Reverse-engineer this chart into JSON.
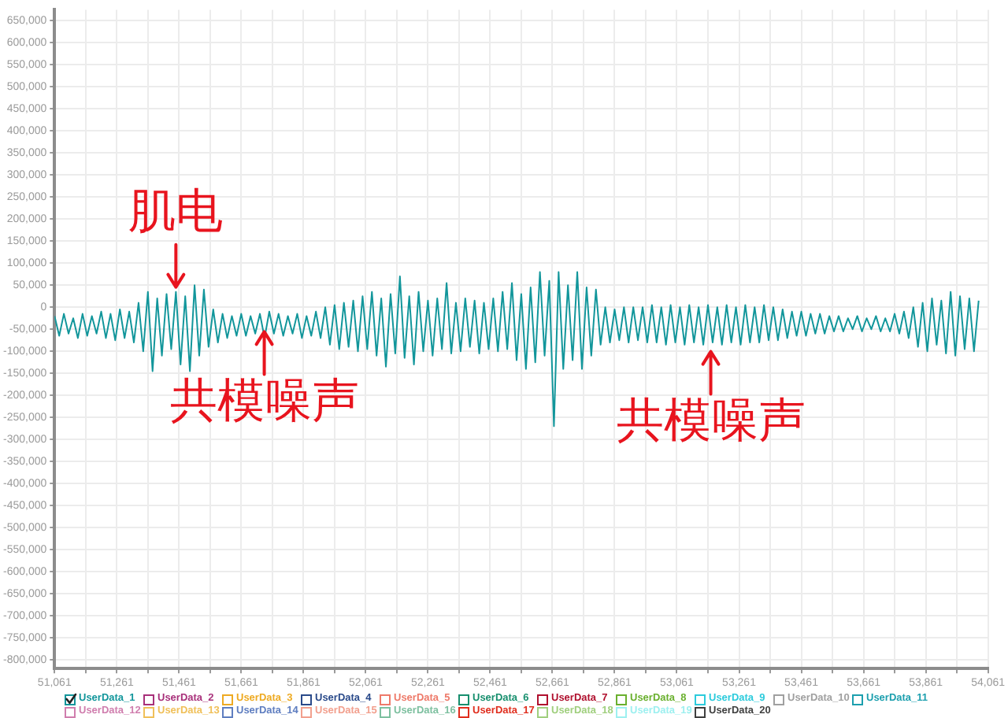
{
  "chart_data": {
    "type": "line",
    "series": [
      {
        "name": "UserData_1",
        "color": "#12969b",
        "x": [
          51061,
          51076,
          51091,
          51106,
          51121,
          51136,
          51151,
          51166,
          51181,
          51196,
          51211,
          51226,
          51241,
          51256,
          51271,
          51286,
          51301,
          51316,
          51331,
          51346,
          51361,
          51376,
          51391,
          51406,
          51421,
          51436,
          51451,
          51466,
          51481,
          51496,
          51511,
          51526,
          51541,
          51556,
          51571,
          51586,
          51601,
          51616,
          51631,
          51646,
          51661,
          51676,
          51691,
          51706,
          51721,
          51736,
          51751,
          51766,
          51781,
          51796,
          51811,
          51826,
          51841,
          51856,
          51871,
          51886,
          51901,
          51916,
          51931,
          51946,
          51961,
          51976,
          51991,
          52006,
          52021,
          52036,
          52051,
          52066,
          52081,
          52096,
          52111,
          52126,
          52141,
          52156,
          52171,
          52186,
          52201,
          52216,
          52231,
          52246,
          52261,
          52276,
          52291,
          52306,
          52321,
          52336,
          52351,
          52366,
          52381,
          52396,
          52411,
          52426,
          52441,
          52456,
          52471,
          52486,
          52501,
          52516,
          52531,
          52546,
          52561,
          52576,
          52591,
          52606,
          52621,
          52636,
          52651,
          52666,
          52681,
          52696,
          52711,
          52726,
          52741,
          52756,
          52771,
          52786,
          52801,
          52816,
          52831,
          52846,
          52861,
          52876,
          52891,
          52906,
          52921,
          52936,
          52951,
          52966,
          52981,
          52996,
          53011,
          53026,
          53041,
          53056,
          53071,
          53086,
          53101,
          53116,
          53131,
          53146,
          53161,
          53176,
          53191,
          53206,
          53221,
          53236,
          53251,
          53266,
          53281,
          53296,
          53311,
          53326,
          53341,
          53356,
          53371,
          53386,
          53401,
          53416,
          53431,
          53446,
          53461,
          53476,
          53491,
          53506,
          53521,
          53536,
          53551,
          53566,
          53581,
          53596,
          53611,
          53626,
          53641,
          53656,
          53671,
          53686,
          53701,
          53716,
          53731,
          53746,
          53761,
          53776,
          53791,
          53806,
          53821,
          53836,
          53851,
          53866,
          53881,
          53896,
          53911,
          53926,
          53941,
          53956,
          53971,
          53986,
          54001,
          54016,
          54031
        ],
        "values": [
          -20000,
          -65000,
          -15000,
          -60000,
          -25000,
          -70000,
          -15000,
          -65000,
          -20000,
          -60000,
          -10000,
          -70000,
          -15000,
          -75000,
          -5000,
          -70000,
          -10000,
          -80000,
          10000,
          -100000,
          35000,
          -145000,
          20000,
          -110000,
          30000,
          -95000,
          35000,
          -130000,
          25000,
          -145000,
          50000,
          -110000,
          40000,
          -90000,
          -5000,
          -80000,
          -15000,
          -70000,
          -20000,
          -65000,
          -15000,
          -65000,
          -20000,
          -60000,
          -15000,
          -70000,
          -10000,
          -60000,
          -15000,
          -65000,
          -20000,
          -60000,
          -15000,
          -70000,
          -20000,
          -65000,
          -10000,
          -70000,
          0,
          -85000,
          5000,
          -95000,
          10000,
          -90000,
          15000,
          -100000,
          25000,
          -95000,
          35000,
          -110000,
          20000,
          -135000,
          30000,
          -105000,
          70000,
          -115000,
          25000,
          -130000,
          35000,
          -100000,
          15000,
          -110000,
          20000,
          -95000,
          55000,
          -105000,
          10000,
          -100000,
          20000,
          -90000,
          15000,
          -105000,
          10000,
          -95000,
          20000,
          -100000,
          35000,
          -95000,
          55000,
          -120000,
          30000,
          -140000,
          45000,
          -125000,
          80000,
          -110000,
          60000,
          -270000,
          80000,
          -140000,
          50000,
          -120000,
          80000,
          -140000,
          45000,
          -110000,
          40000,
          -85000,
          0,
          -80000,
          -5000,
          -75000,
          0,
          -80000,
          0,
          -75000,
          0,
          -80000,
          5000,
          -80000,
          0,
          -85000,
          5000,
          -80000,
          0,
          -85000,
          5000,
          -80000,
          0,
          -85000,
          5000,
          -80000,
          0,
          -85000,
          5000,
          -80000,
          0,
          -85000,
          5000,
          -80000,
          0,
          -80000,
          5000,
          -75000,
          0,
          -75000,
          -5000,
          -70000,
          -10000,
          -65000,
          -10000,
          -65000,
          -15000,
          -60000,
          -15000,
          -60000,
          -20000,
          -55000,
          -20000,
          -55000,
          -25000,
          -50000,
          -20000,
          -55000,
          -25000,
          -50000,
          -20000,
          -55000,
          -25000,
          -55000,
          -15000,
          -60000,
          -10000,
          -70000,
          0,
          -90000,
          10000,
          -100000,
          20000,
          -85000,
          15000,
          -105000,
          35000,
          -110000,
          25000,
          -95000,
          20000,
          -100000,
          15000
        ]
      },
      {
        "name": "UserData_2",
        "color": "#a8307a"
      },
      {
        "name": "UserData_3",
        "color": "#eeaa22"
      },
      {
        "name": "UserData_4",
        "color": "#2a4a8a"
      },
      {
        "name": "UserData_5",
        "color": "#ee7a6a"
      },
      {
        "name": "UserData_6",
        "color": "#178f6e"
      },
      {
        "name": "UserData_7",
        "color": "#b0102e"
      },
      {
        "name": "UserData_8",
        "color": "#6ab02e"
      },
      {
        "name": "UserData_9",
        "color": "#2ccbdc"
      },
      {
        "name": "UserData_10",
        "color": "#a0a0a0"
      },
      {
        "name": "UserData_11",
        "color": "#1c9fae"
      },
      {
        "name": "UserData_12",
        "color": "#d07eae"
      },
      {
        "name": "UserData_13",
        "color": "#f0c05a"
      },
      {
        "name": "UserData_14",
        "color": "#5f7ec0"
      },
      {
        "name": "UserData_15",
        "color": "#f2a08e"
      },
      {
        "name": "UserData_16",
        "color": "#7ec0a0"
      },
      {
        "name": "UserData_17",
        "color": "#e02e1e"
      },
      {
        "name": "UserData_18",
        "color": "#a0cf7e"
      },
      {
        "name": "UserData_19",
        "color": "#9ef0f0"
      },
      {
        "name": "UserData_20",
        "color": "#404040"
      }
    ],
    "xlim": [
      51061,
      54061
    ],
    "xticks": [
      {
        "value": 51061,
        "label": "51,061"
      },
      {
        "value": 51161,
        "label": null
      },
      {
        "value": 51261,
        "label": "51,261"
      },
      {
        "value": 51361,
        "label": null
      },
      {
        "value": 51461,
        "label": "51,461"
      },
      {
        "value": 51561,
        "label": null
      },
      {
        "value": 51661,
        "label": "51,661"
      },
      {
        "value": 51761,
        "label": null
      },
      {
        "value": 51861,
        "label": "51,861"
      },
      {
        "value": 51961,
        "label": null
      },
      {
        "value": 52061,
        "label": "52,061"
      },
      {
        "value": 52161,
        "label": null
      },
      {
        "value": 52261,
        "label": "52,261"
      },
      {
        "value": 52361,
        "label": null
      },
      {
        "value": 52461,
        "label": "52,461"
      },
      {
        "value": 52561,
        "label": null
      },
      {
        "value": 52661,
        "label": "52,661"
      },
      {
        "value": 52761,
        "label": null
      },
      {
        "value": 52861,
        "label": "52,861"
      },
      {
        "value": 52961,
        "label": null
      },
      {
        "value": 53061,
        "label": "53,061"
      },
      {
        "value": 53161,
        "label": null
      },
      {
        "value": 53261,
        "label": "53,261"
      },
      {
        "value": 53361,
        "label": null
      },
      {
        "value": 53461,
        "label": "53,461"
      },
      {
        "value": 53561,
        "label": null
      },
      {
        "value": 53661,
        "label": "53,661"
      },
      {
        "value": 53761,
        "label": null
      },
      {
        "value": 53861,
        "label": "53,861"
      },
      {
        "value": 53961,
        "label": null
      },
      {
        "value": 54061,
        "label": "54,061"
      }
    ],
    "ylim": [
      -820000,
      675000
    ],
    "yticks": [
      {
        "value": -800000,
        "label": "-800,000"
      },
      {
        "value": -750000,
        "label": "-750,000"
      },
      {
        "value": -700000,
        "label": "-700,000"
      },
      {
        "value": -650000,
        "label": "-650,000"
      },
      {
        "value": -600000,
        "label": "-600,000"
      },
      {
        "value": -550000,
        "label": "-550,000"
      },
      {
        "value": -500000,
        "label": "-500,000"
      },
      {
        "value": -450000,
        "label": "-450,000"
      },
      {
        "value": -400000,
        "label": "-400,000"
      },
      {
        "value": -350000,
        "label": "-350,000"
      },
      {
        "value": -300000,
        "label": "-300,000"
      },
      {
        "value": -250000,
        "label": "-250,000"
      },
      {
        "value": -200000,
        "label": "-200,000"
      },
      {
        "value": -150000,
        "label": "-150,000"
      },
      {
        "value": -100000,
        "label": "-100,000"
      },
      {
        "value": -50000,
        "label": "-50,000"
      },
      0,
      {
        "value": 50000,
        "label": "50,000"
      },
      {
        "value": 100000,
        "label": "100,000"
      },
      {
        "value": 150000,
        "label": "150,000"
      },
      {
        "value": 200000,
        "label": "200,000"
      },
      {
        "value": 250000,
        "label": "250,000"
      },
      {
        "value": 300000,
        "label": "300,000"
      },
      {
        "value": 350000,
        "label": "350,000"
      },
      {
        "value": 400000,
        "label": "400,000"
      },
      {
        "value": 450000,
        "label": "450,000"
      },
      {
        "value": 500000,
        "label": "500,000"
      },
      {
        "value": 550000,
        "label": "550,000"
      },
      {
        "value": 600000,
        "label": "600,000"
      },
      {
        "value": 650000,
        "label": "650,000"
      }
    ],
    "grid": true,
    "legend": "bottom",
    "annotations": [
      {
        "text": "肌电",
        "x": 51451,
        "y": 35000
      },
      {
        "text": "共模噪声",
        "x": 51735,
        "y": -45000
      },
      {
        "text": "共模噪声",
        "x": 53170,
        "y": -90000
      }
    ]
  }
}
